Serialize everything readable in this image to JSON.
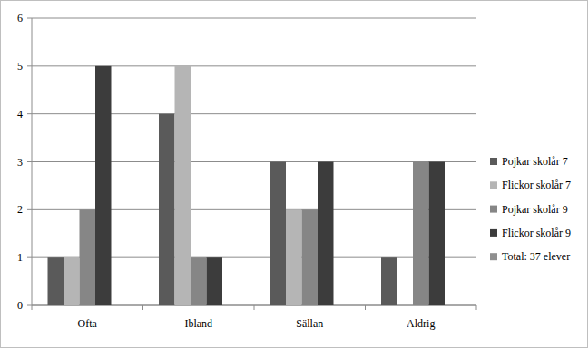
{
  "chart_data": {
    "type": "bar",
    "categories": [
      "Ofta",
      "Ibland",
      "Sällan",
      "Aldrig"
    ],
    "series": [
      {
        "name": "Pojkar skolår 7",
        "color": "#5a5a5a",
        "values": [
          1,
          4,
          3,
          1
        ]
      },
      {
        "name": "Flickor skolår 7",
        "color": "#b5b5b5",
        "values": [
          1,
          5,
          2,
          0
        ]
      },
      {
        "name": "Pojkar skolår 9",
        "color": "#868686",
        "values": [
          2,
          1,
          2,
          3
        ]
      },
      {
        "name": "Flickor skolår 9",
        "color": "#3c3c3c",
        "values": [
          5,
          1,
          3,
          3
        ]
      },
      {
        "name": "Total: 37 elever",
        "color": "#8f8f8f",
        "values": [
          null,
          null,
          null,
          null
        ]
      }
    ],
    "ylim": [
      0,
      6
    ],
    "yticks": [
      0,
      1,
      2,
      3,
      4,
      5,
      6
    ],
    "grid": true,
    "legend": "right"
  }
}
